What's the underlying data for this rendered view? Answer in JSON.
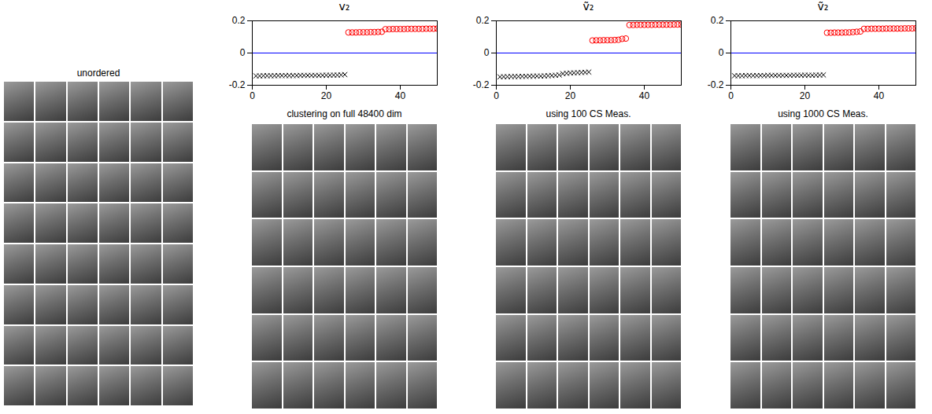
{
  "chart_data": [
    {
      "type": "scatter",
      "title": "v₂",
      "x": [
        1,
        2,
        3,
        4,
        5,
        6,
        7,
        8,
        9,
        10,
        11,
        12,
        13,
        14,
        15,
        16,
        17,
        18,
        19,
        20,
        21,
        22,
        23,
        24,
        25,
        26,
        27,
        28,
        29,
        30,
        31,
        32,
        33,
        34,
        35,
        36,
        37,
        38,
        39,
        40,
        41,
        42,
        43,
        44,
        45,
        46,
        47,
        48,
        49,
        50
      ],
      "xlim": [
        0,
        50
      ],
      "xticks": [
        0,
        20,
        40
      ],
      "ylim": [
        -0.2,
        0.2
      ],
      "yticks": [
        -0.2,
        0,
        0.2
      ],
      "series": [
        {
          "type": "line",
          "color": "blue",
          "x": [
            0,
            50
          ],
          "values": [
            0,
            0
          ]
        },
        {
          "color": "black",
          "marker": "x",
          "values": [
            -0.142,
            -0.142,
            -0.141,
            -0.141,
            -0.141,
            -0.141,
            -0.14,
            -0.14,
            -0.14,
            -0.14,
            -0.14,
            -0.14,
            -0.139,
            -0.139,
            -0.139,
            -0.139,
            -0.139,
            -0.139,
            -0.138,
            -0.138,
            -0.138,
            -0.137,
            -0.137,
            -0.136,
            -0.134,
            null,
            null,
            null,
            null,
            null,
            null,
            null,
            null,
            null,
            null,
            null,
            null,
            null,
            null,
            null,
            null,
            null,
            null,
            null,
            null,
            null,
            null,
            null,
            null,
            null
          ]
        },
        {
          "color": "red",
          "marker": "circle",
          "values": [
            null,
            null,
            null,
            null,
            null,
            null,
            null,
            null,
            null,
            null,
            null,
            null,
            null,
            null,
            null,
            null,
            null,
            null,
            null,
            null,
            null,
            null,
            null,
            null,
            null,
            0.128,
            0.128,
            0.128,
            0.129,
            0.129,
            0.129,
            0.13,
            0.13,
            0.131,
            0.132,
            0.148,
            0.148,
            0.149,
            0.149,
            0.149,
            0.149,
            0.15,
            0.15,
            0.15,
            0.15,
            0.15,
            0.151,
            0.151,
            0.151,
            0.152
          ]
        }
      ]
    },
    {
      "type": "scatter",
      "title": "ṽ₂",
      "x": [
        1,
        2,
        3,
        4,
        5,
        6,
        7,
        8,
        9,
        10,
        11,
        12,
        13,
        14,
        15,
        16,
        17,
        18,
        19,
        20,
        21,
        22,
        23,
        24,
        25,
        26,
        27,
        28,
        29,
        30,
        31,
        32,
        33,
        34,
        35,
        36,
        37,
        38,
        39,
        40,
        41,
        42,
        43,
        44,
        45,
        46,
        47,
        48,
        49,
        50
      ],
      "xlim": [
        0,
        50
      ],
      "xticks": [
        0,
        20,
        40
      ],
      "ylim": [
        -0.2,
        0.2
      ],
      "yticks": [
        -0.2,
        0,
        0.2
      ],
      "series": [
        {
          "type": "line",
          "color": "blue",
          "x": [
            0,
            50
          ],
          "values": [
            0,
            0
          ]
        },
        {
          "color": "black",
          "marker": "x",
          "values": [
            -0.148,
            -0.147,
            -0.147,
            -0.146,
            -0.146,
            -0.146,
            -0.145,
            -0.145,
            -0.144,
            -0.144,
            -0.143,
            -0.143,
            -0.142,
            -0.141,
            -0.14,
            -0.138,
            -0.136,
            -0.128,
            -0.126,
            -0.124,
            -0.123,
            -0.122,
            -0.121,
            -0.12,
            -0.118,
            null,
            null,
            null,
            null,
            null,
            null,
            null,
            null,
            null,
            null,
            null,
            null,
            null,
            null,
            null,
            null,
            null,
            null,
            null,
            null,
            null,
            null,
            null,
            null,
            null
          ]
        },
        {
          "color": "red",
          "marker": "circle",
          "values": [
            null,
            null,
            null,
            null,
            null,
            null,
            null,
            null,
            null,
            null,
            null,
            null,
            null,
            null,
            null,
            null,
            null,
            null,
            null,
            null,
            null,
            null,
            null,
            null,
            null,
            0.078,
            0.079,
            0.079,
            0.08,
            0.08,
            0.08,
            0.081,
            0.082,
            0.088,
            0.09,
            0.174,
            0.174,
            0.175,
            0.175,
            0.175,
            0.175,
            0.175,
            0.176,
            0.176,
            0.176,
            0.176,
            0.176,
            0.177,
            0.177,
            0.177
          ]
        }
      ]
    },
    {
      "type": "scatter",
      "title": "ṽ₂",
      "x": [
        1,
        2,
        3,
        4,
        5,
        6,
        7,
        8,
        9,
        10,
        11,
        12,
        13,
        14,
        15,
        16,
        17,
        18,
        19,
        20,
        21,
        22,
        23,
        24,
        25,
        26,
        27,
        28,
        29,
        30,
        31,
        32,
        33,
        34,
        35,
        36,
        37,
        38,
        39,
        40,
        41,
        42,
        43,
        44,
        45,
        46,
        47,
        48,
        49,
        50
      ],
      "xlim": [
        0,
        50
      ],
      "xticks": [
        0,
        20,
        40
      ],
      "ylim": [
        -0.2,
        0.2
      ],
      "yticks": [
        -0.2,
        0,
        0.2
      ],
      "series": [
        {
          "type": "line",
          "color": "blue",
          "x": [
            0,
            50
          ],
          "values": [
            0,
            0
          ]
        },
        {
          "color": "black",
          "marker": "x",
          "values": [
            -0.141,
            -0.141,
            -0.141,
            -0.14,
            -0.14,
            -0.14,
            -0.14,
            -0.14,
            -0.14,
            -0.139,
            -0.139,
            -0.139,
            -0.139,
            -0.139,
            -0.139,
            -0.139,
            -0.138,
            -0.138,
            -0.138,
            -0.138,
            -0.138,
            -0.138,
            -0.137,
            -0.137,
            -0.136,
            null,
            null,
            null,
            null,
            null,
            null,
            null,
            null,
            null,
            null,
            null,
            null,
            null,
            null,
            null,
            null,
            null,
            null,
            null,
            null,
            null,
            null,
            null,
            null,
            null
          ]
        },
        {
          "color": "red",
          "marker": "circle",
          "values": [
            null,
            null,
            null,
            null,
            null,
            null,
            null,
            null,
            null,
            null,
            null,
            null,
            null,
            null,
            null,
            null,
            null,
            null,
            null,
            null,
            null,
            null,
            null,
            null,
            null,
            0.126,
            0.126,
            0.127,
            0.127,
            0.127,
            0.128,
            0.128,
            0.13,
            0.132,
            0.134,
            0.15,
            0.15,
            0.151,
            0.151,
            0.151,
            0.151,
            0.152,
            0.152,
            0.152,
            0.152,
            0.152,
            0.153,
            0.153,
            0.153,
            0.154
          ]
        }
      ]
    }
  ],
  "image_captions": [
    "unordered",
    "clustering on full 48400 dim",
    "using 100 CS Meas.",
    "using 1000 CS Meas."
  ]
}
